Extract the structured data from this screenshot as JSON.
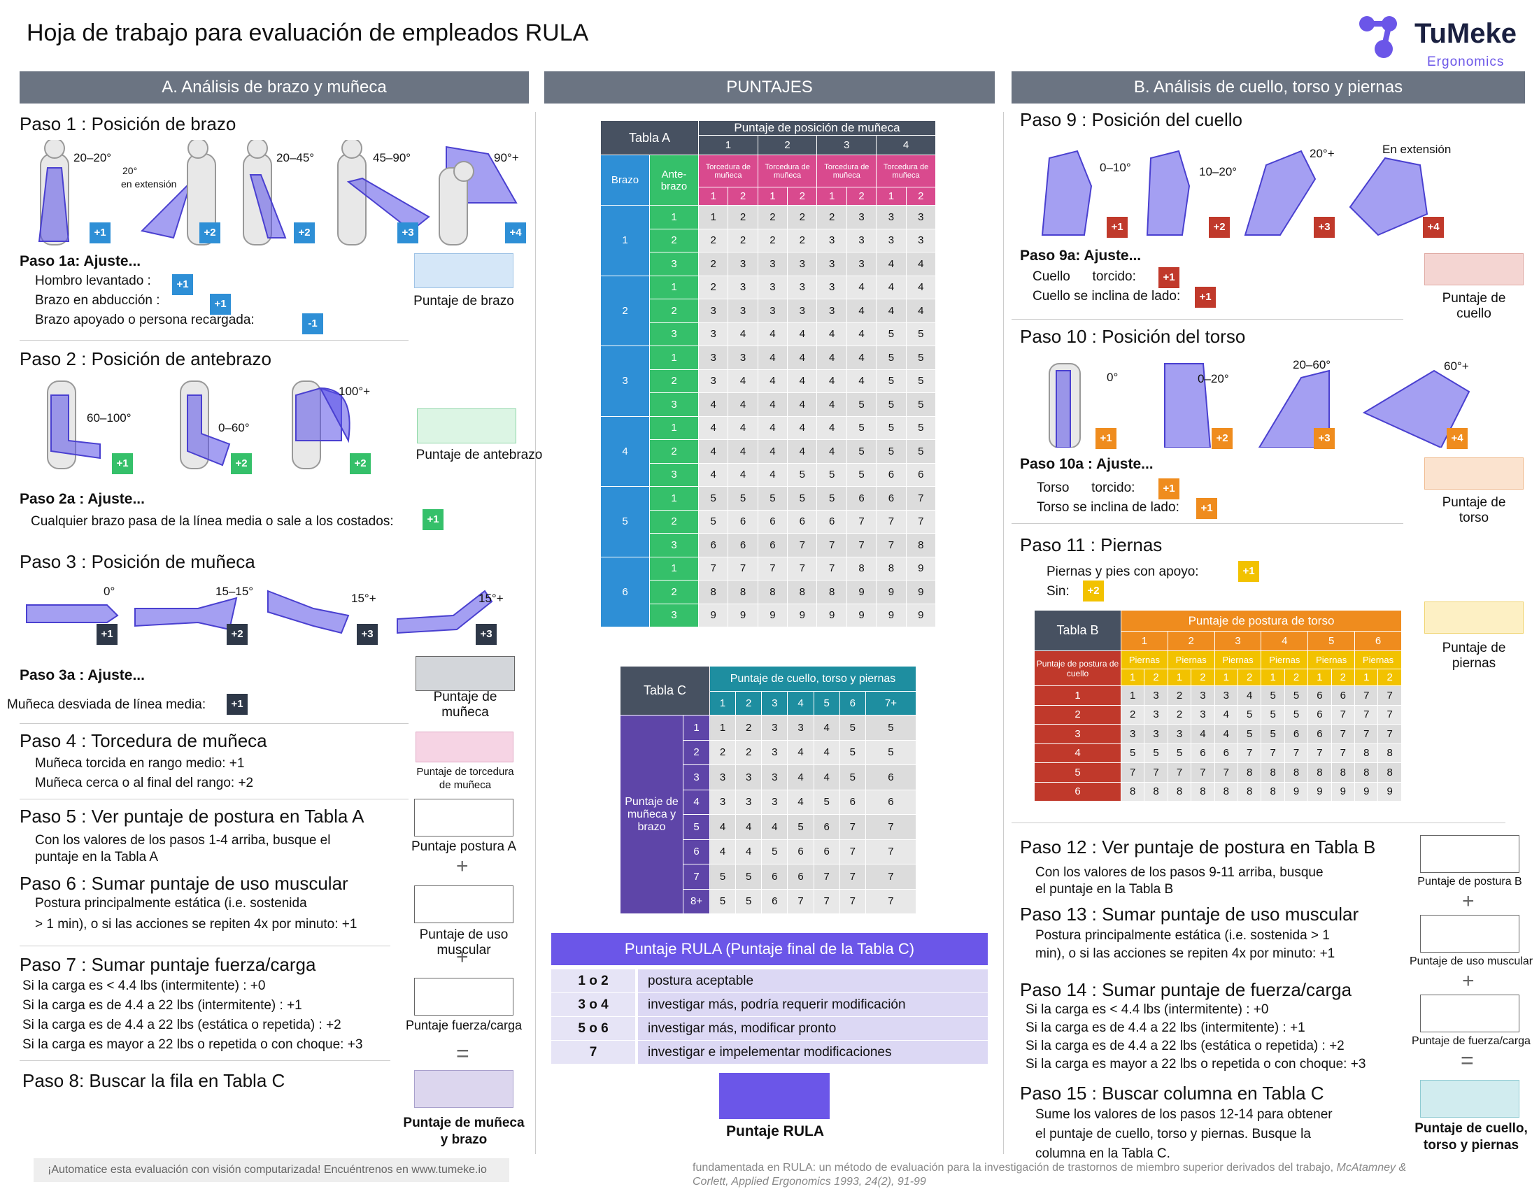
{
  "title": "Hoja de trabajo para evaluación de empleados RULA",
  "logo": {
    "name": "TuMeke",
    "sub": "Ergonomics"
  },
  "sections": {
    "a": "A. Análisis de brazo y muñeca",
    "scores": "PUNTAJES",
    "b": "B. Análisis de cuello, torso y piernas"
  },
  "colors": {
    "blue": "#2e8fd6",
    "green": "#35c06a",
    "dark": "#2e3848",
    "red": "#c0392b",
    "orange": "#ef8c1e",
    "yellow": "#f2c200",
    "purple": "#6b56e8"
  },
  "left": {
    "s1": "Paso 1 : Posición de brazo",
    "s1_angles": [
      "20–20°",
      "20°",
      "en extensión",
      "20–45°",
      "45–90°",
      "90°+"
    ],
    "s1_badges": [
      "+1",
      "+2",
      "+2",
      "+3",
      "+4"
    ],
    "s1a": "Paso 1a: Ajuste...",
    "s1a_items": [
      "Hombro levantado :",
      "Brazo en abducción :",
      "Brazo apoyado o persona recargada:"
    ],
    "s1a_badges": [
      "+1",
      "+1",
      "-1"
    ],
    "s1_box": "Puntaje de brazo",
    "s2": "Paso 2 : Posición de antebrazo",
    "s2_angles": [
      "60–100°",
      "0–60°",
      "100°+"
    ],
    "s2_badges": [
      "+1",
      "+2",
      "+2"
    ],
    "s2_box": "Puntaje de antebrazo",
    "s2a": "Paso 2a : Ajuste...",
    "s2a_item": "Cualquier brazo pasa de la línea media o sale a los costados:",
    "s2a_badge": "+1",
    "s3": "Paso 3 : Posición de muñeca",
    "s3_angles": [
      "0°",
      "15–15°",
      "15°+",
      "15°+"
    ],
    "s3_badges": [
      "+1",
      "+2",
      "+3",
      "+3"
    ],
    "s3a": "Paso 3a : Ajuste...",
    "s3a_item": "Muñeca desviada de línea media:",
    "s3a_badge": "+1",
    "s3_box": [
      "Puntaje de",
      "muñeca"
    ],
    "s4": "Paso 4 : Torcedura de muñeca",
    "s4_items": [
      "Muñeca torcida en rango medio: +1",
      "Muñeca cerca o al final del rango: +2"
    ],
    "s4_box": [
      "Puntaje de torcedura",
      "de muñeca"
    ],
    "s5": "Paso 5 : Ver puntaje de postura en Tabla A",
    "s5_items": [
      "Con los valores de los pasos 1-4 arriba, busque el",
      "puntaje en la Tabla A"
    ],
    "s5_box": "Puntaje postura A",
    "s6": "Paso 6 : Sumar puntaje de uso muscular",
    "s6_items": [
      "Postura principalmente estática (i.e. sostenida",
      "> 1 min), o si las acciones se repiten 4x por minuto: +1"
    ],
    "s6_box": [
      "Puntaje de uso",
      "muscular"
    ],
    "s7": "Paso 7 : Sumar puntaje fuerza/carga",
    "s7_items": [
      "Si la carga es < 4.4 lbs (intermitente) : +0",
      "Si la carga es de 4.4 a 22 lbs (intermitente) : +1",
      "Si la carga es de 4.4 a 22 lbs (estática o repetida) : +2",
      "Si la carga es mayor a 22 lbs o repetida o con choque: +3"
    ],
    "s7_box": "Puntaje fuerza/carga",
    "s8": "Paso 8: Buscar la fila en Tabla C",
    "s8_box": [
      "Puntaje de muñeca",
      "y brazo"
    ],
    "plus": "+",
    "eq": "="
  },
  "tableA": {
    "title": "Tabla A",
    "colhead": "Puntaje de posición de muñeca",
    "cols": [
      "1",
      "2",
      "3",
      "4"
    ],
    "twist": "Torcedura de muñeca",
    "sub": [
      "1",
      "2"
    ],
    "rowhead": "Brazo",
    "rowhead2": "Ante- brazo",
    "arm": [
      "1",
      "2",
      "3",
      "4",
      "5",
      "6"
    ],
    "fore": [
      "1",
      "2",
      "3"
    ],
    "rows": [
      [
        1,
        2,
        2,
        2,
        2,
        3,
        3,
        3
      ],
      [
        2,
        2,
        2,
        2,
        3,
        3,
        3,
        3
      ],
      [
        2,
        3,
        3,
        3,
        3,
        3,
        4,
        4
      ],
      [
        2,
        3,
        3,
        3,
        3,
        4,
        4,
        4
      ],
      [
        3,
        3,
        3,
        3,
        3,
        4,
        4,
        4
      ],
      [
        3,
        4,
        4,
        4,
        4,
        4,
        5,
        5
      ],
      [
        3,
        3,
        4,
        4,
        4,
        4,
        5,
        5
      ],
      [
        3,
        4,
        4,
        4,
        4,
        4,
        5,
        5
      ],
      [
        4,
        4,
        4,
        4,
        4,
        5,
        5,
        5
      ],
      [
        4,
        4,
        4,
        4,
        4,
        5,
        5,
        5
      ],
      [
        4,
        4,
        4,
        4,
        4,
        5,
        5,
        5
      ],
      [
        4,
        4,
        4,
        5,
        5,
        5,
        6,
        6
      ],
      [
        5,
        5,
        5,
        5,
        5,
        6,
        6,
        7
      ],
      [
        5,
        6,
        6,
        6,
        6,
        7,
        7,
        7
      ],
      [
        6,
        6,
        6,
        7,
        7,
        7,
        7,
        8
      ],
      [
        7,
        7,
        7,
        7,
        7,
        8,
        8,
        9
      ],
      [
        8,
        8,
        8,
        8,
        8,
        9,
        9,
        9
      ],
      [
        9,
        9,
        9,
        9,
        9,
        9,
        9,
        9
      ]
    ]
  },
  "tableC": {
    "title": "Tabla C",
    "colhead": "Puntaje de cuello, torso y piernas",
    "cols": [
      "1",
      "2",
      "3",
      "4",
      "5",
      "6",
      "7+"
    ],
    "rowhead": "Puntaje de muñeca y brazo",
    "rowlabels": [
      "1",
      "2",
      "3",
      "4",
      "5",
      "6",
      "7",
      "8+"
    ],
    "rows": [
      [
        1,
        2,
        3,
        3,
        4,
        5,
        5
      ],
      [
        2,
        2,
        3,
        4,
        4,
        5,
        5
      ],
      [
        3,
        3,
        3,
        4,
        4,
        5,
        6
      ],
      [
        3,
        3,
        3,
        4,
        5,
        6,
        6
      ],
      [
        4,
        4,
        4,
        5,
        6,
        7,
        7
      ],
      [
        4,
        4,
        5,
        6,
        6,
        7,
        7
      ],
      [
        5,
        5,
        6,
        6,
        7,
        7,
        7
      ],
      [
        5,
        5,
        6,
        7,
        7,
        7,
        7
      ]
    ]
  },
  "final": {
    "head": "Puntaje RULA (Puntaje final de la Tabla C)",
    "rows": [
      [
        "1 o 2",
        "postura aceptable"
      ],
      [
        "3 o 4",
        "investigar más, podría requerir modificación"
      ],
      [
        "5 o 6",
        "investigar más, modificar pronto"
      ],
      [
        "7",
        "investigar e impelementar modificaciones"
      ]
    ],
    "box": "Puntaje RULA"
  },
  "right": {
    "s9": "Paso 9 : Posición del cuello",
    "s9_angles": [
      "0–10°",
      "10–20°",
      "20°+",
      "En extensión"
    ],
    "s9_badges": [
      "+1",
      "+2",
      "+3",
      "+4"
    ],
    "s9a": "Paso 9a: Ajuste...",
    "s9a_items": [
      "Cuello      torcido:",
      "Cuello se inclina de lado:"
    ],
    "s9a_badges": [
      "+1",
      "+1"
    ],
    "s9_box": [
      "Puntaje de",
      "cuello"
    ],
    "s10": "Paso 10 : Posición del torso",
    "s10_angles": [
      "0°",
      "0–20°",
      "20–60°",
      "60°+"
    ],
    "s10_badges": [
      "+1",
      "+2",
      "+3",
      "+4"
    ],
    "s10a": "Paso 10a : Ajuste...",
    "s10a_items": [
      "Torso      torcido:",
      "Torso se inclina de lado:"
    ],
    "s10a_badges": [
      "+1",
      "+1"
    ],
    "s10_box": [
      "Puntaje de",
      "torso"
    ],
    "s11": "Paso 11 : Piernas",
    "s11_items": [
      "Piernas y pies con apoyo:",
      "Sin:"
    ],
    "s11_badges": [
      "+1",
      "+2"
    ],
    "s11_box": [
      "Puntaje de",
      "piernas"
    ],
    "s12": "Paso 12 : Ver puntaje de postura en Tabla B",
    "s12_items": [
      "Con los valores de los pasos 9-11 arriba, busque",
      "el puntaje en la Tabla B"
    ],
    "s12_box": "Puntaje de postura B",
    "s13": "Paso 13 : Sumar puntaje de uso muscular",
    "s13_items": [
      "Postura principalmente estática (i.e. sostenida > 1",
      "min), o si las acciones se repiten 4x por minuto: +1"
    ],
    "s13_box": "Puntaje de uso muscular",
    "s14": "Paso 14 : Sumar puntaje de fuerza/carga",
    "s14_items": [
      "Si la carga es < 4.4 lbs (intermitente) : +0",
      "Si la carga es de 4.4 a 22 lbs (intermitente) : +1",
      "Si la carga es de 4.4 a 22 lbs (estática o repetida) : +2",
      "Si la carga es mayor a 22 lbs o repetida o con choque: +3"
    ],
    "s14_box": "Puntaje de fuerza/carga",
    "s15": "Paso 15 : Buscar columna en Tabla C",
    "s15_items": [
      "Sume los valores de los pasos 12-14 para obtener",
      "el puntaje de cuello, torso y piernas. Busque la",
      "columna en la Tabla C."
    ],
    "s15_box": [
      "Puntaje de cuello,",
      "torso y piernas"
    ]
  },
  "tableB": {
    "title": "Tabla B",
    "colhead": "Puntaje de postura de torso",
    "cols": [
      "1",
      "2",
      "3",
      "4",
      "5",
      "6"
    ],
    "sub": "Piernas",
    "subnum": [
      "1",
      "2"
    ],
    "rowhead": "Puntaje de postura de cuello",
    "rowlabels": [
      "1",
      "2",
      "3",
      "4",
      "5",
      "6"
    ],
    "rows": [
      [
        1,
        3,
        2,
        3,
        3,
        4,
        5,
        5,
        6,
        6,
        7,
        7
      ],
      [
        2,
        3,
        2,
        3,
        4,
        5,
        5,
        5,
        6,
        7,
        7,
        7
      ],
      [
        3,
        3,
        3,
        4,
        4,
        5,
        5,
        6,
        6,
        7,
        7,
        7
      ],
      [
        5,
        5,
        5,
        6,
        6,
        7,
        7,
        7,
        7,
        7,
        8,
        8
      ],
      [
        7,
        7,
        7,
        7,
        7,
        8,
        8,
        8,
        8,
        8,
        8,
        8
      ],
      [
        8,
        8,
        8,
        8,
        8,
        8,
        8,
        9,
        9,
        9,
        9,
        9
      ]
    ]
  },
  "footer": {
    "left": "¡Automatice esta evaluación con visión computarizada! Encuéntrenos en www.tumeke.io",
    "right1": "fundamentada en RULA: un método de evaluación para la investigación de trastornos de miembro superior derivados del trabajo, ",
    "right1i": "McAtamney &",
    "right2": "Corlett, Applied Ergonomics 1993, 24(2), 91-99"
  }
}
